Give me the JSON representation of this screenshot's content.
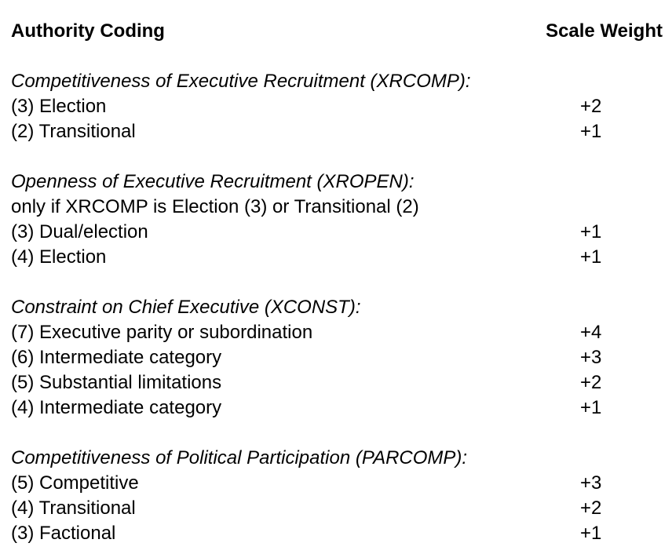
{
  "header": {
    "left": "Authority Coding",
    "right": "Scale Weight"
  },
  "sections": [
    {
      "title": "Competitiveness of Executive Recruitment (XRCOMP):",
      "rows": [
        {
          "label": "(3) Election",
          "weight": "+2"
        },
        {
          "label": "(2) Transitional",
          "weight": "+1"
        }
      ]
    },
    {
      "title": "Openness of Executive Recruitment (XROPEN):",
      "note": "only if XRCOMP is Election (3) or Transitional (2)",
      "rows": [
        {
          "label": "(3) Dual/election",
          "weight": "+1"
        },
        {
          "label": "(4) Election",
          "weight": "+1"
        }
      ]
    },
    {
      "title": "Constraint on Chief Executive (XCONST):",
      "rows": [
        {
          "label": "(7) Executive parity or subordination",
          "weight": "+4"
        },
        {
          "label": "(6) Intermediate category",
          "weight": "+3"
        },
        {
          "label": "(5) Substantial limitations",
          "weight": "+2"
        },
        {
          "label": "(4) Intermediate category",
          "weight": "+1"
        }
      ]
    },
    {
      "title": "Competitiveness of Political Participation (PARCOMP):",
      "rows": [
        {
          "label": "(5) Competitive",
          "weight": "+3"
        },
        {
          "label": "(4) Transitional",
          "weight": "+2"
        },
        {
          "label": "(3) Factional",
          "weight": "+1"
        }
      ]
    }
  ]
}
